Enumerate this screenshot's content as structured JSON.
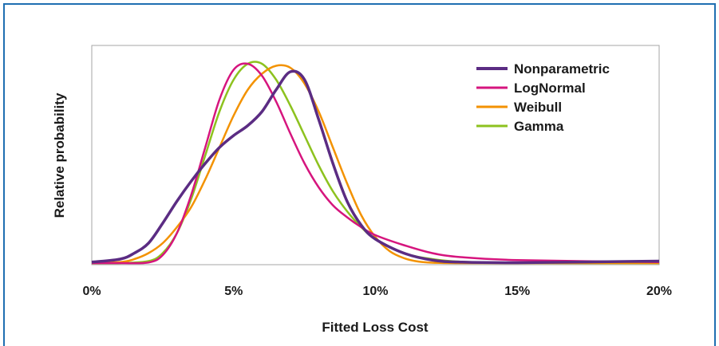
{
  "colors": {
    "frame": "#1f6fb2",
    "plot_border": "#a6a6a6",
    "nonparametric": "#5b2c83",
    "lognormal": "#d6157e",
    "weibull": "#f39200",
    "gamma": "#8dc21f"
  },
  "chart_data": {
    "type": "line",
    "title": "",
    "xlabel": "Fitted Loss Cost",
    "ylabel": "Relative probability",
    "xlim": [
      0,
      20
    ],
    "ylim": [
      0,
      1.0
    ],
    "x_ticks": [
      0,
      5,
      10,
      15,
      20
    ],
    "x_tick_labels": [
      "0%",
      "5%",
      "10%",
      "15%",
      "20%"
    ],
    "grid": false,
    "legend_position": "top-right",
    "series": [
      {
        "name": "Nonparametric",
        "color": "#5b2c83",
        "x": [
          0,
          1,
          1.5,
          2,
          2.5,
          3,
          3.5,
          4,
          4.5,
          5,
          5.5,
          6,
          6.5,
          7,
          7.5,
          8,
          8.5,
          9,
          9.5,
          10,
          11,
          12,
          13,
          15,
          20
        ],
        "y": [
          0.005,
          0.02,
          0.05,
          0.1,
          0.2,
          0.31,
          0.41,
          0.5,
          0.58,
          0.64,
          0.69,
          0.76,
          0.87,
          0.96,
          0.92,
          0.72,
          0.5,
          0.31,
          0.19,
          0.12,
          0.05,
          0.015,
          0.005,
          0.002,
          0.01
        ]
      },
      {
        "name": "LogNormal",
        "color": "#d6157e",
        "x": [
          0,
          1,
          2,
          2.5,
          3,
          3.5,
          4,
          4.5,
          5,
          5.5,
          6,
          6.5,
          7,
          7.5,
          8,
          8.5,
          9,
          9.5,
          10,
          11,
          12,
          13,
          15,
          20
        ],
        "y": [
          0,
          0,
          0.003,
          0.04,
          0.15,
          0.34,
          0.58,
          0.82,
          0.97,
          1.0,
          0.94,
          0.81,
          0.65,
          0.5,
          0.38,
          0.29,
          0.23,
          0.18,
          0.14,
          0.09,
          0.05,
          0.03,
          0.015,
          0.005
        ]
      },
      {
        "name": "Weibull",
        "color": "#f39200",
        "x": [
          0,
          1,
          1.5,
          2,
          2.5,
          3,
          3.5,
          4,
          4.5,
          5,
          5.5,
          6,
          6.5,
          7,
          7.5,
          8,
          8.5,
          9,
          9.5,
          10,
          10.5,
          11,
          11.5,
          12,
          13,
          15,
          20
        ],
        "y": [
          0,
          0.005,
          0.02,
          0.05,
          0.1,
          0.18,
          0.28,
          0.42,
          0.58,
          0.74,
          0.87,
          0.95,
          0.99,
          0.98,
          0.9,
          0.76,
          0.58,
          0.4,
          0.24,
          0.13,
          0.06,
          0.025,
          0.008,
          0.002,
          0,
          0,
          0
        ]
      },
      {
        "name": "Gamma",
        "color": "#8dc21f",
        "x": [
          0,
          1,
          2,
          2.5,
          3,
          3.5,
          4,
          4.5,
          5,
          5.5,
          6,
          6.5,
          7,
          7.5,
          8,
          8.5,
          9,
          9.5,
          10,
          11,
          12,
          13,
          15,
          20
        ],
        "y": [
          0,
          0,
          0.01,
          0.05,
          0.15,
          0.32,
          0.54,
          0.76,
          0.92,
          1.0,
          1.0,
          0.92,
          0.79,
          0.64,
          0.49,
          0.36,
          0.26,
          0.18,
          0.12,
          0.05,
          0.02,
          0.007,
          0.001,
          0
        ]
      }
    ]
  }
}
